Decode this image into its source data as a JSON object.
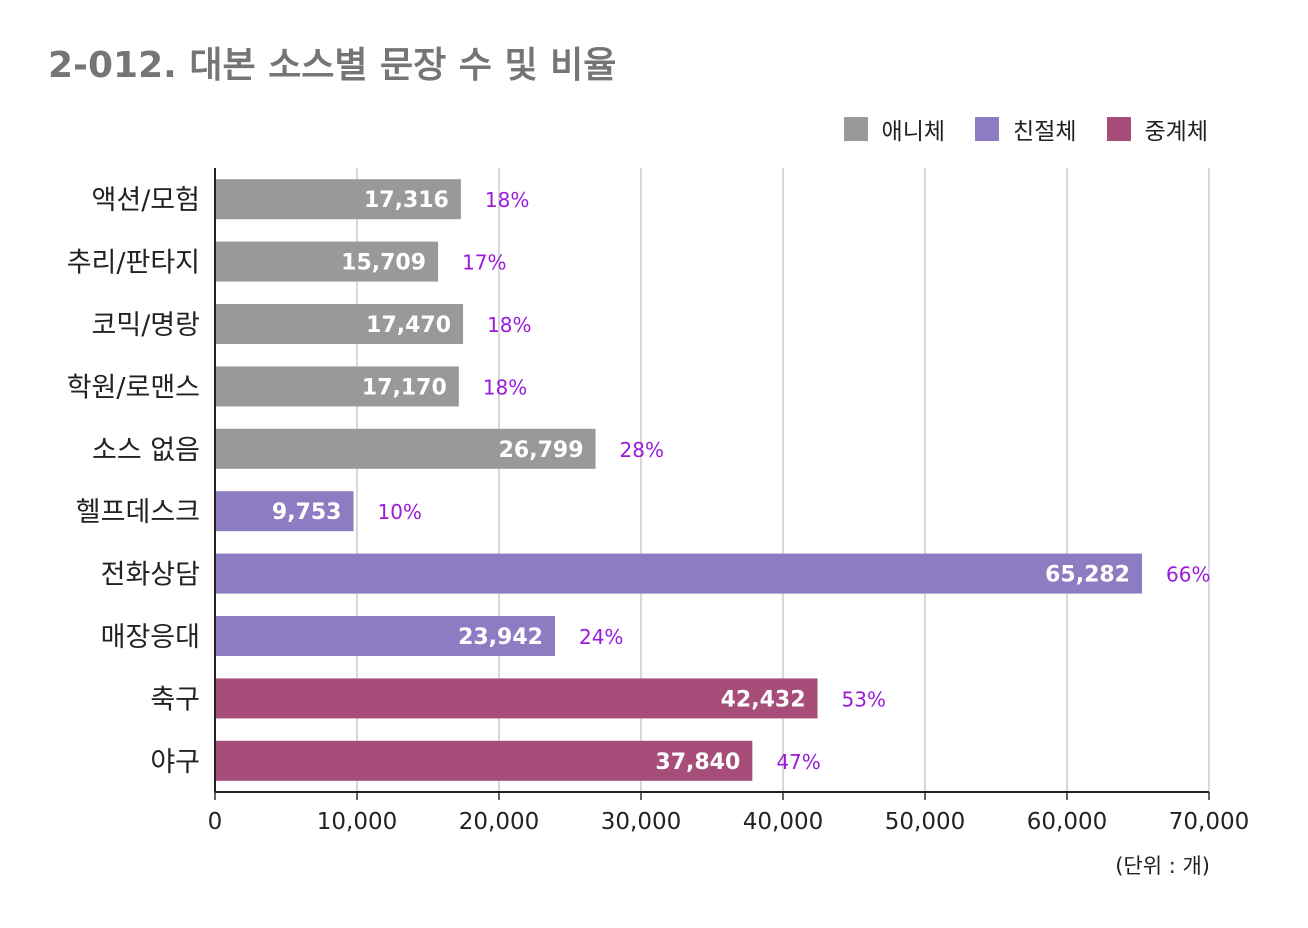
{
  "title": "2-012. 대본 소스별 문장 수 및 비율",
  "unit_note": "(단위 : 개)",
  "legend": [
    {
      "label": "애니체",
      "color": "#999999"
    },
    {
      "label": "친절체",
      "color": "#8e7cc3"
    },
    {
      "label": "중계체",
      "color": "#a64d79"
    }
  ],
  "chart_data": {
    "type": "bar",
    "orientation": "horizontal",
    "categories": [
      "액션/모험",
      "추리/판타지",
      "코믹/명랑",
      "학원/로맨스",
      "소스 없음",
      "헬프데스크",
      "전화상담",
      "매장응대",
      "축구",
      "야구"
    ],
    "groups": [
      "애니체",
      "애니체",
      "애니체",
      "애니체",
      "애니체",
      "친절체",
      "친절체",
      "친절체",
      "중계체",
      "중계체"
    ],
    "values": [
      17316,
      15709,
      17470,
      17170,
      26799,
      9753,
      65282,
      23942,
      42432,
      37840
    ],
    "value_labels": [
      "17,316",
      "15,709",
      "17,470",
      "17,170",
      "26,799",
      "9,753",
      "65,282",
      "23,942",
      "42,432",
      "37,840"
    ],
    "percent_labels": [
      "18%",
      "17%",
      "18%",
      "18%",
      "28%",
      "10%",
      "66%",
      "24%",
      "53%",
      "47%"
    ],
    "xlim": [
      0,
      70000
    ],
    "xticks": [
      0,
      10000,
      20000,
      30000,
      40000,
      50000,
      60000,
      70000
    ],
    "xtick_labels": [
      "0",
      "10,000",
      "20,000",
      "30,000",
      "40,000",
      "50,000",
      "60,000",
      "70,000"
    ],
    "grid": true
  }
}
